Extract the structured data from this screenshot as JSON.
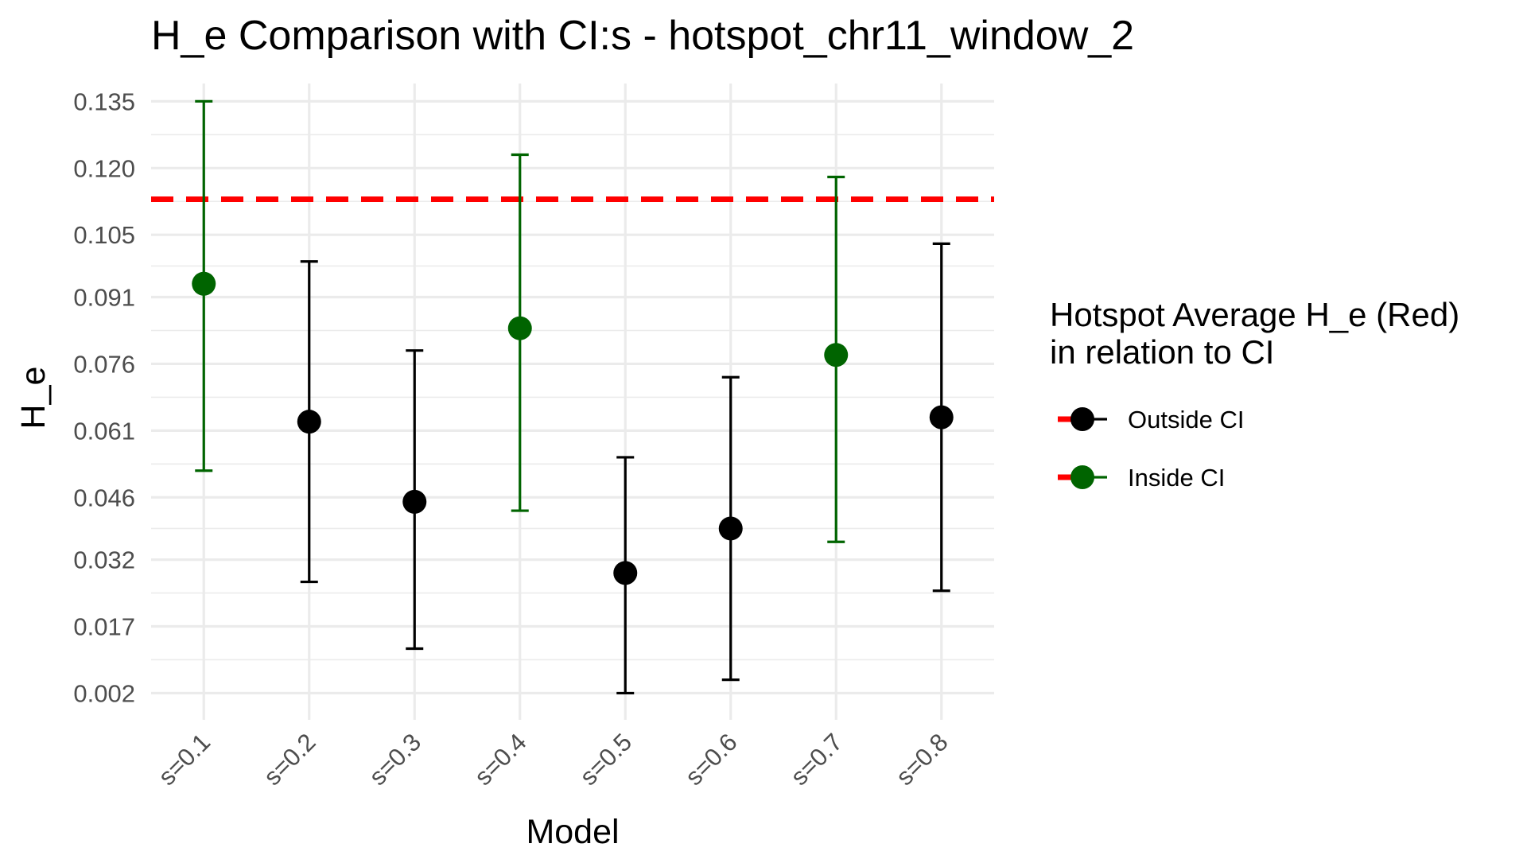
{
  "chart_data": {
    "type": "scatter",
    "title": "H_e Comparison with CI:s -  hotspot_chr11_window_2",
    "xlabel": "Model",
    "ylabel": "H_e",
    "categories": [
      "s=0.1",
      "s=0.2",
      "s=0.3",
      "s=0.4",
      "s=0.5",
      "s=0.6",
      "s=0.7",
      "s=0.8"
    ],
    "y_ticks": [
      "0.002",
      "0.017",
      "0.032",
      "0.046",
      "0.061",
      "0.076",
      "0.091",
      "0.105",
      "0.120",
      "0.135"
    ],
    "ylim": [
      -0.004,
      0.139
    ],
    "points": [
      {
        "x": "s=0.1",
        "y": 0.094,
        "ci_low": 0.052,
        "ci_high": 0.135,
        "status": "Inside CI"
      },
      {
        "x": "s=0.2",
        "y": 0.063,
        "ci_low": 0.027,
        "ci_high": 0.099,
        "status": "Outside CI"
      },
      {
        "x": "s=0.3",
        "y": 0.045,
        "ci_low": 0.012,
        "ci_high": 0.079,
        "status": "Outside CI"
      },
      {
        "x": "s=0.4",
        "y": 0.084,
        "ci_low": 0.043,
        "ci_high": 0.123,
        "status": "Inside CI"
      },
      {
        "x": "s=0.5",
        "y": 0.029,
        "ci_low": 0.002,
        "ci_high": 0.055,
        "status": "Outside CI"
      },
      {
        "x": "s=0.6",
        "y": 0.039,
        "ci_low": 0.005,
        "ci_high": 0.073,
        "status": "Outside CI"
      },
      {
        "x": "s=0.7",
        "y": 0.078,
        "ci_low": 0.036,
        "ci_high": 0.118,
        "status": "Inside CI"
      },
      {
        "x": "s=0.8",
        "y": 0.064,
        "ci_low": 0.025,
        "ci_high": 0.103,
        "status": "Outside CI"
      }
    ],
    "reference_line": {
      "y": 0.113,
      "style": "dashed",
      "color": "#ff0000"
    },
    "legend": {
      "title_lines": [
        "Hotspot Average H_e (Red)",
        "in relation to CI"
      ],
      "placement": "right",
      "entries": [
        {
          "label": "Outside CI",
          "color": "#000000"
        },
        {
          "label": "Inside CI",
          "color": "#006400"
        }
      ]
    },
    "colors": {
      "Outside CI": "#000000",
      "Inside CI": "#006400",
      "reference": "#ff0000",
      "grid": "#ebebeb"
    },
    "grid": true
  }
}
